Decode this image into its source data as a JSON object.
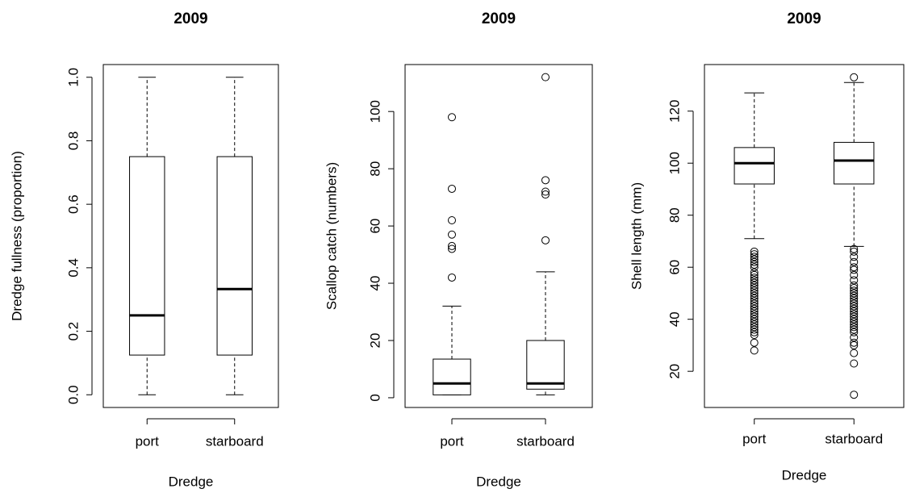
{
  "chart_data": [
    {
      "type": "box",
      "title": "2009",
      "xlabel": "Dredge",
      "ylabel": "Dredge fullness (proportion)",
      "categories": [
        "port",
        "starboard"
      ],
      "boxes": [
        {
          "whislo": 0,
          "q1": 0.125,
          "med": 0.25,
          "q3": 0.75,
          "whishi": 1.0,
          "fliers": []
        },
        {
          "whislo": 0,
          "q1": 0.125,
          "med": 0.333,
          "q3": 0.75,
          "whishi": 1.0,
          "fliers": []
        }
      ],
      "ylim": [
        -0.04,
        1.04
      ],
      "yticks": [
        {
          "value": 0,
          "label": "0.0"
        },
        0.2,
        0.4,
        0.6,
        0.8,
        {
          "value": 1,
          "label": "1.0"
        }
      ]
    },
    {
      "type": "box",
      "title": "2009",
      "xlabel": "Dredge",
      "ylabel": "Scallop catch (numbers)",
      "categories": [
        "port",
        "starboard"
      ],
      "boxes": [
        {
          "whislo": 1,
          "q1": 1,
          "med": 5,
          "q3": 13.5,
          "whishi": 32,
          "fliers": [
            42,
            52,
            53,
            57,
            62,
            73,
            98
          ]
        },
        {
          "whislo": 1,
          "q1": 3,
          "med": 5,
          "q3": 20,
          "whishi": 44,
          "fliers": [
            55,
            71,
            72,
            76,
            112
          ]
        }
      ],
      "ylim": [
        -3.4,
        116.4
      ],
      "yticks": [
        0,
        20,
        40,
        60,
        80,
        100
      ]
    },
    {
      "type": "box",
      "title": "2009",
      "xlabel": "Dredge",
      "ylabel": "Shell length (mm)",
      "categories": [
        "port",
        "starboard"
      ],
      "boxes": [
        {
          "whislo": 71,
          "q1": 92,
          "med": 100,
          "q3": 106,
          "whishi": 127,
          "fliers": [
            28,
            31,
            34,
            35,
            36,
            37,
            38,
            39,
            40,
            41,
            42,
            43,
            44,
            45,
            46,
            47,
            48,
            49,
            50,
            51,
            52,
            53,
            54,
            55,
            56,
            57,
            58,
            60,
            61,
            62,
            63,
            64,
            65,
            66
          ]
        },
        {
          "whislo": 68,
          "q1": 92,
          "med": 101,
          "q3": 108,
          "whishi": 131,
          "fliers": [
            11,
            23,
            27,
            30,
            31,
            33,
            35,
            36,
            37,
            38,
            39,
            40,
            41,
            42,
            43,
            44,
            45,
            46,
            47,
            48,
            49,
            50,
            51,
            52,
            53,
            55,
            57,
            59,
            60,
            62,
            64,
            66,
            67,
            133
          ]
        }
      ],
      "ylim": [
        6.1,
        137.9
      ],
      "yticks": [
        20,
        40,
        60,
        80,
        100,
        120
      ]
    }
  ]
}
